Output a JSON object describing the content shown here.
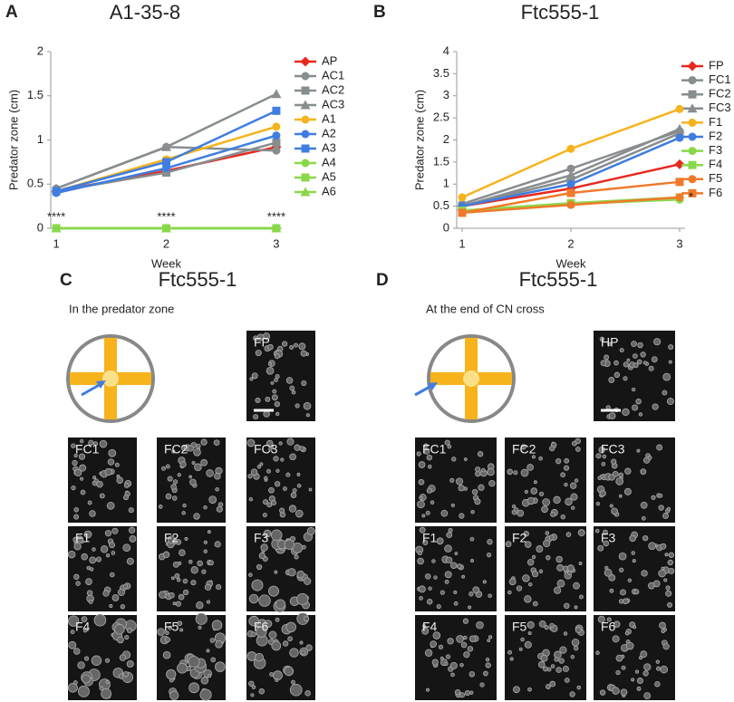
{
  "chart_data": [
    {
      "type": "line",
      "panel_label": "A",
      "title": "A1-35-8",
      "x_label": "Week",
      "y_label": "Predator zone (cm)",
      "x": [
        1,
        2,
        3
      ],
      "xlim": [
        0.95,
        3.05
      ],
      "xticks": [
        1,
        2,
        3
      ],
      "ylim": [
        0,
        2
      ],
      "yticks": [
        0,
        0.5,
        1,
        1.5,
        2
      ],
      "annotations": [
        "****",
        "****",
        "****"
      ],
      "series": [
        {
          "name": "AP",
          "color": "#e8281f",
          "marker": "diamond",
          "values": [
            0.42,
            0.65,
            0.92
          ]
        },
        {
          "name": "AC1",
          "color": "#888d8f",
          "marker": "circle",
          "values": [
            0.45,
            0.92,
            0.88
          ]
        },
        {
          "name": "AC2",
          "color": "#888d8f",
          "marker": "square",
          "values": [
            0.42,
            0.63,
            0.97
          ]
        },
        {
          "name": "AC3",
          "color": "#888d8f",
          "marker": "triangle",
          "values": [
            0.45,
            0.92,
            1.52
          ]
        },
        {
          "name": "A1",
          "color": "#f6b31c",
          "marker": "circle",
          "values": [
            0.42,
            0.78,
            1.15
          ]
        },
        {
          "name": "A2",
          "color": "#3f7de0",
          "marker": "circle",
          "values": [
            0.4,
            0.68,
            1.05
          ]
        },
        {
          "name": "A3",
          "color": "#3f7de0",
          "marker": "square",
          "values": [
            0.42,
            0.75,
            1.33
          ]
        },
        {
          "name": "A4",
          "color": "#8ad84a",
          "marker": "circle",
          "values": [
            0,
            0,
            0
          ]
        },
        {
          "name": "A5",
          "color": "#8ad84a",
          "marker": "square",
          "values": [
            0,
            0,
            0
          ]
        },
        {
          "name": "A6",
          "color": "#8ad84a",
          "marker": "triangle",
          "values": [
            0,
            0,
            0
          ]
        }
      ]
    },
    {
      "type": "line",
      "panel_label": "B",
      "title": "Ftc555-1",
      "x_label": "Week",
      "y_label": "Predator zone (cm)",
      "x": [
        1,
        2,
        3
      ],
      "xlim": [
        0.95,
        3.05
      ],
      "xticks": [
        1,
        2,
        3
      ],
      "ylim": [
        0,
        4
      ],
      "yticks": [
        0,
        0.5,
        1,
        1.5,
        2,
        2.5,
        3,
        3.5,
        4
      ],
      "annotations": [
        "*"
      ],
      "series": [
        {
          "name": "FP",
          "color": "#e8281f",
          "marker": "diamond",
          "values": [
            0.5,
            0.9,
            1.45
          ]
        },
        {
          "name": "FC1",
          "color": "#888d8f",
          "marker": "circle",
          "values": [
            0.55,
            1.35,
            2.2
          ]
        },
        {
          "name": "FC2",
          "color": "#888d8f",
          "marker": "square",
          "values": [
            0.5,
            1.1,
            2.15
          ]
        },
        {
          "name": "FC3",
          "color": "#888d8f",
          "marker": "triangle",
          "values": [
            0.5,
            1.2,
            2.25
          ]
        },
        {
          "name": "F1",
          "color": "#f6b31c",
          "marker": "circle",
          "values": [
            0.7,
            1.8,
            2.7
          ]
        },
        {
          "name": "F2",
          "color": "#3f7de0",
          "marker": "circle",
          "values": [
            0.5,
            1.0,
            2.05
          ]
        },
        {
          "name": "F3",
          "color": "#8ad84a",
          "marker": "circle",
          "values": [
            0.4,
            0.55,
            0.65
          ]
        },
        {
          "name": "F4",
          "color": "#8ad84a",
          "marker": "square",
          "values": [
            0.4,
            0.57,
            0.7
          ]
        },
        {
          "name": "F5",
          "color": "#f07a2a",
          "marker": "circle",
          "values": [
            0.35,
            0.53,
            0.7
          ]
        },
        {
          "name": "F6",
          "color": "#f07a2a",
          "marker": "square",
          "values": [
            0.35,
            0.8,
            1.05
          ]
        }
      ]
    }
  ],
  "image_panels": [
    {
      "label": "C",
      "title": "Ftc555-1",
      "subtitle": "In the predator zone",
      "reference": "FP",
      "tiles": [
        "FC1",
        "FC2",
        "FC3",
        "F1",
        "F2",
        "F3",
        "F4",
        "F5",
        "F6"
      ]
    },
    {
      "label": "D",
      "title": "Ftc555-1",
      "subtitle": "At the end of CN cross",
      "reference": "HP",
      "tiles": [
        "FC1",
        "FC2",
        "FC3",
        "F1",
        "F2",
        "F3",
        "F4",
        "F5",
        "F6"
      ]
    }
  ]
}
